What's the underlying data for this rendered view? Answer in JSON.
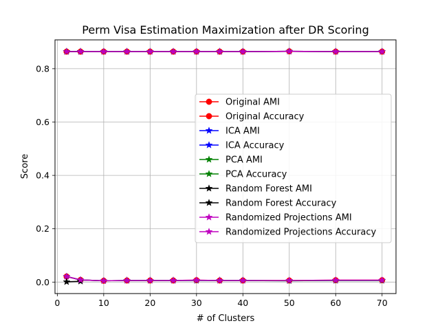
{
  "chart_data": {
    "type": "line",
    "title": "Perm Visa Estimation Maximization after DR Scoring",
    "xlabel": "# of Clusters",
    "ylabel": "Score",
    "xlim": [
      -0.5,
      73.0
    ],
    "ylim": [
      -0.043,
      0.908
    ],
    "xticks": [
      0,
      10,
      20,
      30,
      40,
      50,
      60,
      70
    ],
    "yticks": [
      0.0,
      0.2,
      0.4,
      0.6,
      0.8
    ],
    "ytick_labels": [
      "0.0",
      "0.2",
      "0.4",
      "0.6",
      "0.8"
    ],
    "grid": true,
    "legend_position": "center-right",
    "x": [
      2,
      5,
      10,
      15,
      20,
      25,
      30,
      35,
      40,
      50,
      60,
      70
    ],
    "series": [
      {
        "name": "Original AMI",
        "color": "#ff0000",
        "marker": "circle",
        "values": [
          0.021,
          0.008,
          0.005,
          0.006,
          0.006,
          0.006,
          0.007,
          0.006,
          0.006,
          0.006,
          0.007,
          0.007
        ]
      },
      {
        "name": "Original Accuracy",
        "color": "#ff0000",
        "marker": "circle",
        "values": [
          0.864,
          0.864,
          0.864,
          0.864,
          0.864,
          0.864,
          0.864,
          0.864,
          0.864,
          0.865,
          0.864,
          0.864
        ]
      },
      {
        "name": "ICA AMI",
        "color": "#0000ff",
        "marker": "star",
        "values": [
          0.021,
          0.008,
          0.005,
          0.006,
          0.006,
          0.006,
          0.006,
          0.006,
          0.006,
          0.005,
          0.006,
          0.006
        ]
      },
      {
        "name": "ICA Accuracy",
        "color": "#0000ff",
        "marker": "star",
        "values": [
          0.864,
          0.864,
          0.864,
          0.864,
          0.864,
          0.864,
          0.864,
          0.864,
          0.864,
          0.865,
          0.864,
          0.864
        ]
      },
      {
        "name": "PCA AMI",
        "color": "#008000",
        "marker": "star",
        "values": [
          0.021,
          0.008,
          0.005,
          0.006,
          0.006,
          0.006,
          0.006,
          0.006,
          0.006,
          0.005,
          0.006,
          0.006
        ]
      },
      {
        "name": "PCA Accuracy",
        "color": "#008000",
        "marker": "star",
        "values": [
          0.864,
          0.864,
          0.864,
          0.864,
          0.864,
          0.864,
          0.864,
          0.864,
          0.864,
          0.865,
          0.864,
          0.864
        ]
      },
      {
        "name": "Random Forest AMI",
        "color": "#000000",
        "marker": "star",
        "values": [
          0.001,
          0.003,
          null,
          null,
          null,
          null,
          null,
          null,
          null,
          null,
          null,
          null
        ]
      },
      {
        "name": "Random Forest Accuracy",
        "color": "#000000",
        "marker": "star",
        "values": [
          0.864,
          0.864,
          null,
          null,
          null,
          null,
          null,
          null,
          null,
          null,
          null,
          null
        ]
      },
      {
        "name": "Randomized Projections AMI",
        "color": "#bf00bf",
        "marker": "star",
        "values": [
          0.021,
          0.008,
          0.005,
          0.006,
          0.006,
          0.006,
          0.007,
          0.006,
          0.006,
          0.006,
          0.007,
          0.007
        ]
      },
      {
        "name": "Randomized Projections Accuracy",
        "color": "#bf00bf",
        "marker": "star",
        "values": [
          0.864,
          0.864,
          0.864,
          0.864,
          0.864,
          0.864,
          0.864,
          0.864,
          0.864,
          0.865,
          0.864,
          0.864
        ]
      }
    ]
  }
}
